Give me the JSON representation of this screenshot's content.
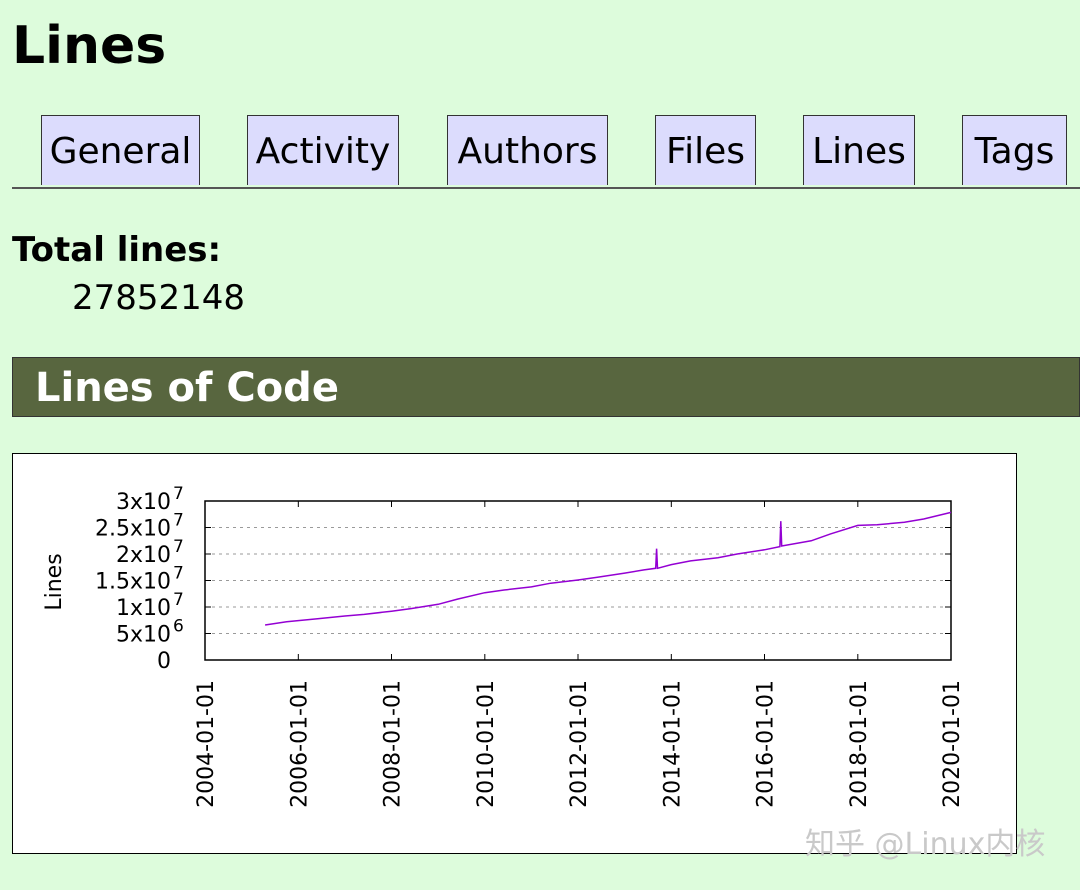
{
  "page": {
    "title": "Lines"
  },
  "tabs": [
    {
      "label": "General"
    },
    {
      "label": "Activity"
    },
    {
      "label": "Authors"
    },
    {
      "label": "Files"
    },
    {
      "label": "Lines"
    },
    {
      "label": "Tags"
    }
  ],
  "total": {
    "label": "Total lines:",
    "value": "27852148"
  },
  "section": {
    "title": "Lines of Code"
  },
  "chart_data": {
    "type": "line",
    "title": "",
    "xlabel": "",
    "ylabel": "Lines",
    "xlim": [
      "2004-01-01",
      "2020-01-01"
    ],
    "ylim": [
      0,
      30000000
    ],
    "grid": "horizontal dashed",
    "legend": "none",
    "line_color": "#9400d3",
    "x_tick_labels": [
      "2004-01-01",
      "2006-01-01",
      "2008-01-01",
      "2010-01-01",
      "2012-01-01",
      "2014-01-01",
      "2016-01-01",
      "2018-01-01",
      "2020-01-01"
    ],
    "y_ticks": [
      {
        "value": 30000000,
        "base": "3x10",
        "exp": "7"
      },
      {
        "value": 25000000,
        "base": "2.5x10",
        "exp": "7"
      },
      {
        "value": 20000000,
        "base": "2x10",
        "exp": "7"
      },
      {
        "value": 15000000,
        "base": "1.5x10",
        "exp": "7"
      },
      {
        "value": 10000000,
        "base": "1x10",
        "exp": "7"
      },
      {
        "value": 5000000,
        "base": "5x10",
        "exp": "6"
      },
      {
        "value": 0,
        "base": "0",
        "exp": ""
      }
    ],
    "series": [
      {
        "points": [
          [
            "2005-04-16",
            6600000
          ],
          [
            "2005-10-01",
            7200000
          ],
          [
            "2006-06-01",
            7800000
          ],
          [
            "2007-01-01",
            8300000
          ],
          [
            "2007-06-01",
            8600000
          ],
          [
            "2008-01-01",
            9200000
          ],
          [
            "2008-06-01",
            9700000
          ],
          [
            "2009-01-01",
            10500000
          ],
          [
            "2009-06-01",
            11500000
          ],
          [
            "2010-01-01",
            12700000
          ],
          [
            "2010-06-01",
            13200000
          ],
          [
            "2011-01-01",
            13800000
          ],
          [
            "2011-06-01",
            14500000
          ],
          [
            "2012-01-01",
            15100000
          ],
          [
            "2012-06-01",
            15600000
          ],
          [
            "2013-01-01",
            16400000
          ],
          [
            "2013-06-01",
            17000000
          ],
          [
            "2013-09-01",
            17300000
          ],
          [
            "2013-09-08",
            21000000
          ],
          [
            "2013-09-15",
            17300000
          ],
          [
            "2014-01-01",
            18000000
          ],
          [
            "2014-06-01",
            18700000
          ],
          [
            "2015-01-01",
            19300000
          ],
          [
            "2015-06-01",
            20000000
          ],
          [
            "2016-01-01",
            20800000
          ],
          [
            "2016-05-01",
            21400000
          ],
          [
            "2016-05-08",
            26200000
          ],
          [
            "2016-05-15",
            21500000
          ],
          [
            "2017-01-01",
            22500000
          ],
          [
            "2017-06-01",
            23800000
          ],
          [
            "2018-01-01",
            25400000
          ],
          [
            "2018-06-01",
            25500000
          ],
          [
            "2019-01-01",
            26000000
          ],
          [
            "2019-06-01",
            26600000
          ],
          [
            "2020-01-01",
            27850000
          ]
        ]
      }
    ]
  },
  "watermark": "知乎 @Linux内核"
}
